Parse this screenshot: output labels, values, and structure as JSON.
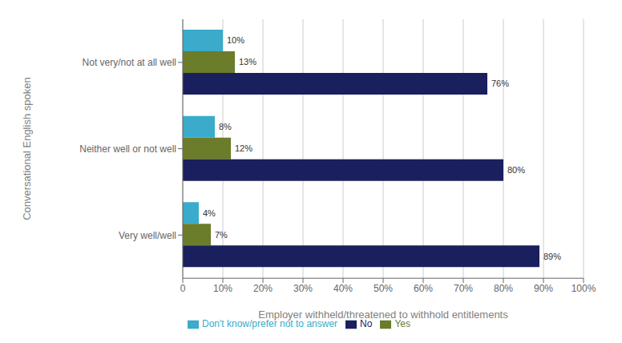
{
  "chart_data": {
    "type": "bar",
    "orientation": "horizontal",
    "categories": [
      "Not very/not at all well",
      "Neither well or not well",
      "Very well/well"
    ],
    "series": [
      {
        "name": "Don't know/prefer not to answer",
        "color": "#3aabca",
        "values": [
          10,
          8,
          4
        ],
        "value_labels": [
          "10%",
          "8%",
          "4%"
        ]
      },
      {
        "name": "Yes",
        "color": "#6b7c2a",
        "values": [
          13,
          12,
          7
        ],
        "value_labels": [
          "13%",
          "12%",
          "7%"
        ]
      },
      {
        "name": "No",
        "color": "#1a1f5e",
        "values": [
          76,
          80,
          89
        ],
        "value_labels": [
          "76%",
          "80%",
          "89%"
        ]
      }
    ],
    "xlabel": "Employer withheld/threatened to withhold entitlements",
    "ylabel": "Conversational English spoken",
    "xlim": [
      0,
      100
    ],
    "xticks": [
      0,
      {
        "value": 10,
        "label": "10%"
      },
      {
        "value": 20,
        "label": "20%"
      },
      {
        "value": 30,
        "label": "30%"
      },
      {
        "value": 40,
        "label": "40%"
      },
      {
        "value": 50,
        "label": "50%"
      },
      {
        "value": 60,
        "label": "60%"
      },
      {
        "value": 70,
        "label": "70%"
      },
      {
        "value": 80,
        "label": "80%"
      },
      {
        "value": 90,
        "label": "90%"
      },
      {
        "value": 100,
        "label": "100%"
      }
    ],
    "grid": true,
    "legend": "bottom",
    "data_labels": true
  }
}
